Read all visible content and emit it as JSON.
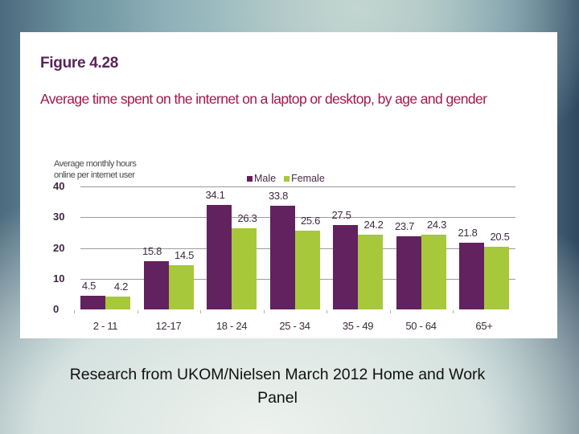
{
  "figure": {
    "title": "Figure 4.28",
    "subtitle": "Average time spent on the internet on a laptop or desktop, by age and gender",
    "ylabel_line1": "Average monthly hours",
    "ylabel_line2": "online per internet user"
  },
  "legend": {
    "male_label": "Male",
    "female_label": "Female"
  },
  "colors": {
    "male": "#62215f",
    "female": "#a6c83a",
    "title": "#5a2458",
    "subtitle": "#a2184a"
  },
  "caption": {
    "line1": "Research from UKOM/Nielsen March 2012 Home and Work",
    "line2": "Panel"
  },
  "chart_data": {
    "type": "bar",
    "title": "Figure 4.28",
    "subtitle": "Average time spent on the internet on a laptop or desktop, by age and gender",
    "xlabel": "",
    "ylabel": "Average monthly hours online per internet user",
    "ylim": [
      0,
      40
    ],
    "yticks": [
      0,
      10,
      20,
      30,
      40
    ],
    "grid": true,
    "legend_position": "top",
    "categories": [
      "2 - 11",
      "12-17",
      "18 - 24",
      "25 - 34",
      "35 - 49",
      "50 - 64",
      "65+"
    ],
    "series": [
      {
        "name": "Male",
        "color": "#62215f",
        "values": [
          4.5,
          15.8,
          34.1,
          33.8,
          27.5,
          23.7,
          21.8
        ]
      },
      {
        "name": "Female",
        "color": "#a6c83a",
        "values": [
          4.2,
          14.5,
          26.3,
          25.6,
          24.2,
          24.3,
          20.5
        ]
      }
    ],
    "data_labels": {
      "male": [
        "4.5",
        "15.8",
        "34.1",
        "33.8",
        "27.5",
        "23.7",
        "21.8"
      ],
      "female": [
        "4.2",
        "14.5",
        "26.3",
        "25.6",
        "24.2",
        "24.3",
        "20.5"
      ]
    }
  }
}
